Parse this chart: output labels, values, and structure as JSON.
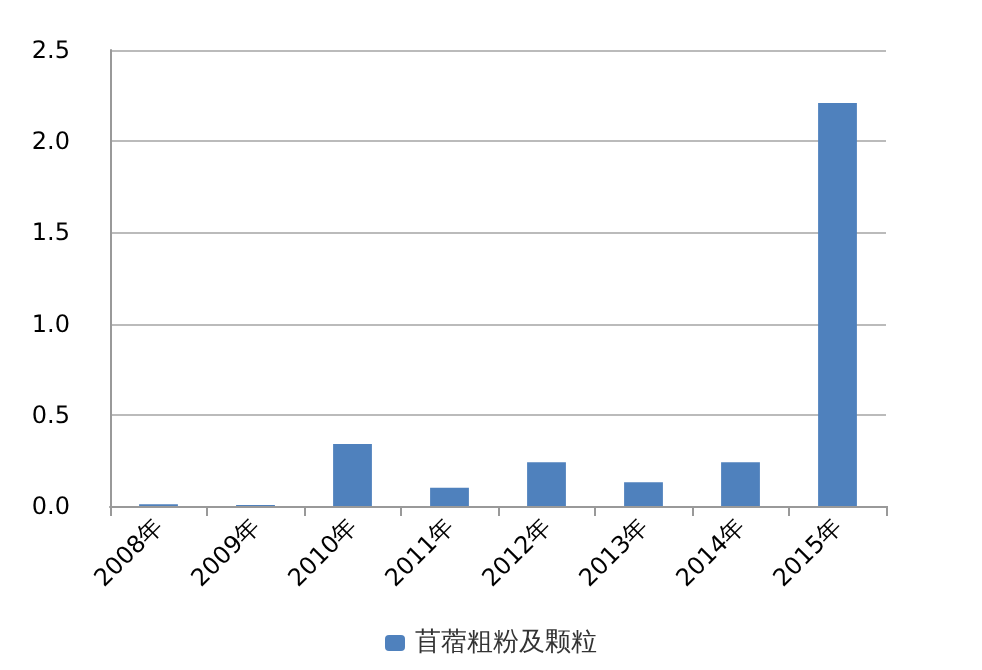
{
  "chart_data": {
    "type": "bar",
    "categories": [
      "2008年",
      "2009年",
      "2010年",
      "2011年",
      "2012年",
      "2013年",
      "2014年",
      "2015年"
    ],
    "series": [
      {
        "name": "苜蓿粗粉及颗粒",
        "color": "#4f81bd",
        "values": [
          0.01,
          0.005,
          0.34,
          0.1,
          0.24,
          0.13,
          0.24,
          2.21
        ]
      }
    ],
    "ylim": [
      0,
      2.5
    ],
    "yticks": [
      {
        "value": 0,
        "label": "0.0"
      },
      {
        "value": 0.5,
        "label": "0.5"
      },
      {
        "value": 1,
        "label": "1.0"
      },
      {
        "value": 1.5,
        "label": "1.5"
      },
      {
        "value": 2,
        "label": "2.0"
      },
      {
        "value": 2.5,
        "label": "2.5"
      }
    ],
    "grid": "y",
    "legend": "bottom"
  }
}
